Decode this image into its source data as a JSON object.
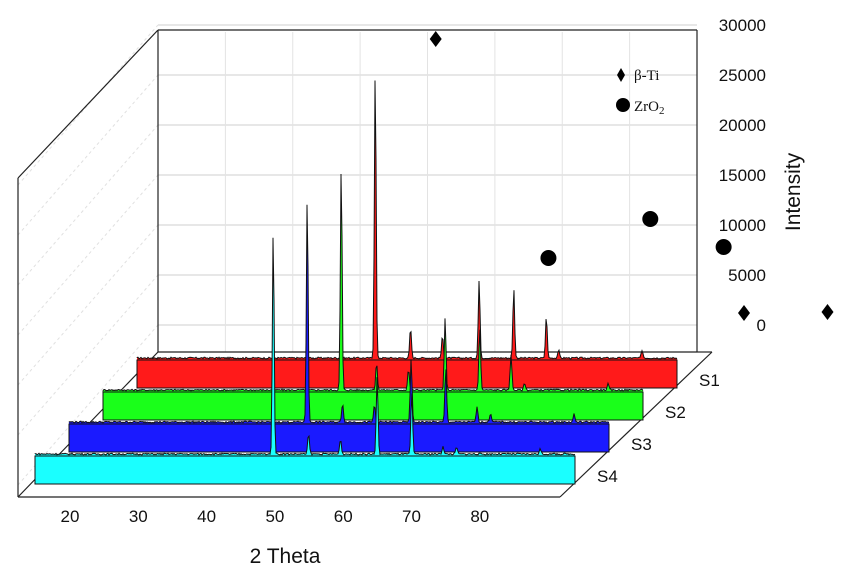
{
  "chart_data": {
    "type": "line",
    "style": "3d-waterfall",
    "xlabel": "2 Theta",
    "ylabel": "Intensity",
    "x_ticks": [
      "20",
      "30",
      "40",
      "50",
      "60",
      "70",
      "80"
    ],
    "y_ticks": [
      "0",
      "5000",
      "10000",
      "15000",
      "20000",
      "25000",
      "30000"
    ],
    "xlim": [
      15,
      90
    ],
    "ylim": [
      0,
      30000
    ],
    "grid": true,
    "legend_position": "top-right",
    "legend": [
      {
        "marker": "diamond",
        "label": "β-Ti"
      },
      {
        "marker": "circle",
        "label_base": "ZrO",
        "label_sub": "2"
      }
    ],
    "series": [
      {
        "name": "S1",
        "color": "#ff1a1a",
        "peaks": [
          [
            35.0,
            29000
          ],
          [
            40.2,
            3000
          ],
          [
            44.9,
            2200
          ],
          [
            50.3,
            7800
          ],
          [
            55.4,
            7000
          ],
          [
            60.2,
            4200
          ],
          [
            62.0,
            800
          ],
          [
            74.3,
            800
          ],
          [
            81.8,
            1800
          ],
          [
            84.5,
            900
          ]
        ]
      },
      {
        "name": "S2",
        "color": "#1aff1a",
        "peaks": [
          [
            35.0,
            22500
          ],
          [
            40.2,
            2700
          ],
          [
            44.9,
            2100
          ],
          [
            50.3,
            7200
          ],
          [
            55.4,
            6300
          ],
          [
            60.0,
            3600
          ],
          [
            62.0,
            700
          ],
          [
            74.3,
            600
          ],
          [
            81.8,
            1600
          ],
          [
            84.5,
            900
          ]
        ]
      },
      {
        "name": "S3",
        "color": "#1a1aff",
        "peaks": [
          [
            35.0,
            22700
          ],
          [
            40.2,
            1900
          ],
          [
            44.9,
            1700
          ],
          [
            50.3,
            6400
          ],
          [
            55.4,
            5400
          ],
          [
            60.0,
            1500
          ],
          [
            62.0,
            900
          ],
          [
            74.3,
            800
          ],
          [
            81.8,
            1500
          ],
          [
            84.5,
            1400
          ]
        ]
      },
      {
        "name": "S4",
        "color": "#1affff",
        "peaks": [
          [
            35.0,
            22500
          ],
          [
            40.2,
            2000
          ],
          [
            44.9,
            1500
          ],
          [
            50.3,
            7800
          ],
          [
            55.4,
            6300
          ],
          [
            60.0,
            800
          ],
          [
            62.0,
            700
          ],
          [
            74.3,
            500
          ],
          [
            81.8,
            1200
          ],
          [
            84.5,
            700
          ]
        ]
      }
    ],
    "annotations": [
      {
        "marker": "diamond",
        "x": 38.9,
        "y": 28600
      },
      {
        "marker": "circle",
        "x": 55.5,
        "y": 6700
      },
      {
        "marker": "circle",
        "x": 70.5,
        "y": 10600
      },
      {
        "marker": "circle",
        "x": 81.3,
        "y": 7800
      },
      {
        "marker": "diamond",
        "x": 84.3,
        "y": 1200
      },
      {
        "marker": "diamond",
        "x": 96.6,
        "y": 1300
      },
      {
        "marker": "diamond",
        "x": 105.8,
        "y": 1600
      },
      {
        "marker": "diamond",
        "x": 109.2,
        "y": 1400
      }
    ]
  }
}
